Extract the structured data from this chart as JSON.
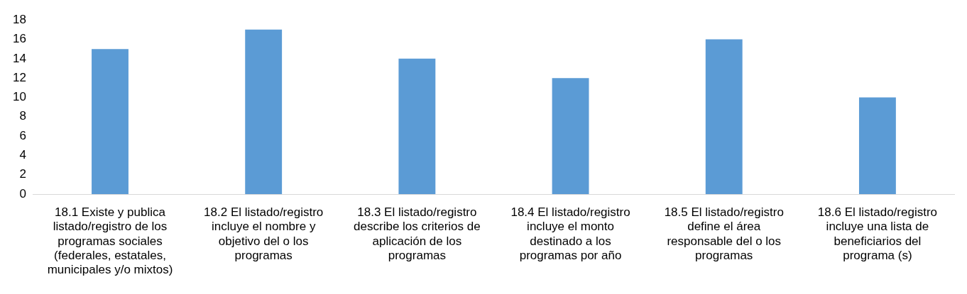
{
  "chart_data": {
    "type": "bar",
    "categories": [
      "18.1 Existe y publica listado/registro de los programas sociales (federales, estatales, municipales y/o mixtos)",
      "18.2 El listado/registro incluye el nombre y objetivo del o los programas",
      "18.3 El listado/registro describe los criterios de aplicación de los programas",
      "18.4 El listado/registro incluye el monto destinado a los programas por año",
      "18.5 El listado/registro define el área responsable del o los programas",
      "18.6 El listado/registro incluye una lista de beneficiarios del programa (s)"
    ],
    "values": [
      15,
      17,
      14,
      12,
      16,
      10
    ],
    "color": "#5b9bd5",
    "ylim": [
      0,
      18
    ],
    "yticks": [
      0,
      2,
      4,
      6,
      8,
      10,
      12,
      14,
      16,
      18
    ],
    "grid": false,
    "legend": false
  }
}
